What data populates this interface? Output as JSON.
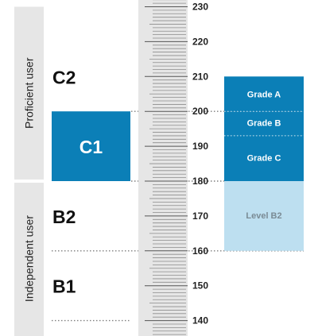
{
  "groups": [
    {
      "label": "Proficient user",
      "from": 180,
      "to": 230
    },
    {
      "label": "Independent user",
      "from": 136,
      "to": 180
    }
  ],
  "levels": [
    {
      "label": "C2",
      "score": 210
    },
    {
      "label": "C1",
      "score": 190,
      "box_from": 180,
      "box_to": 200
    },
    {
      "label": "B2",
      "score": 170
    },
    {
      "label": "B1",
      "score": 150
    }
  ],
  "scale": {
    "min": 136,
    "max": 232,
    "major_ticks": [
      140,
      150,
      160,
      170,
      180,
      190,
      200,
      210,
      220,
      230
    ]
  },
  "grades": [
    {
      "label": "Grade A",
      "from": 200,
      "to": 210,
      "style": "dark"
    },
    {
      "label": "Grade B",
      "from": 193,
      "to": 200,
      "style": "dark"
    },
    {
      "label": "Grade C",
      "from": 180,
      "to": 193,
      "style": "dark"
    },
    {
      "label": "Level B2",
      "from": 160,
      "to": 180,
      "style": "light"
    }
  ],
  "reference_lines": [
    200,
    193,
    180,
    160,
    140
  ],
  "colors": {
    "group_bg": "#e6e6e6",
    "ruler_bg": "#e6e6e6",
    "accent": "#0b7fb7",
    "accent_light": "#bddff0",
    "light_text": "#7a8b95",
    "dots": "#7f7f7f"
  }
}
